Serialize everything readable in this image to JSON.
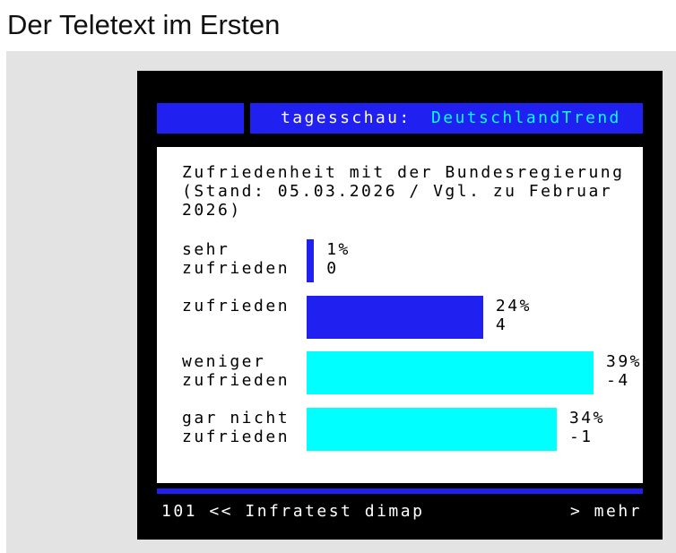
{
  "page": {
    "title": "Der Teletext im Ersten"
  },
  "teletext": {
    "header": {
      "brand": "tagesschau:",
      "section": "DeutschlandTrend"
    },
    "footer": {
      "nav": "101 << Infratest dimap",
      "more": "> mehr"
    },
    "colors": {
      "background": "#000000",
      "blue": "#2020f0",
      "cyan": "#00ffff",
      "content_bg": "#ffffff"
    }
  },
  "chart_data": {
    "type": "bar",
    "title": "Zufriedenheit mit der Bundesregierung (Stand: 05.03.2026 / Vgl. zu Februar 2026)",
    "unit": "%",
    "categories": [
      "sehr\nzufrieden",
      "zufrieden",
      "weniger\nzufrieden",
      "gar nicht\nzufrieden"
    ],
    "values": [
      1,
      24,
      39,
      34
    ],
    "value_labels": [
      "1%",
      "24%",
      "39%",
      "34%"
    ],
    "changes": [
      "0",
      "4",
      "-4",
      "-1"
    ],
    "bar_colors": [
      "#2020f0",
      "#2020f0",
      "#00ffff",
      "#00ffff"
    ],
    "xlim": [
      0,
      39
    ]
  }
}
